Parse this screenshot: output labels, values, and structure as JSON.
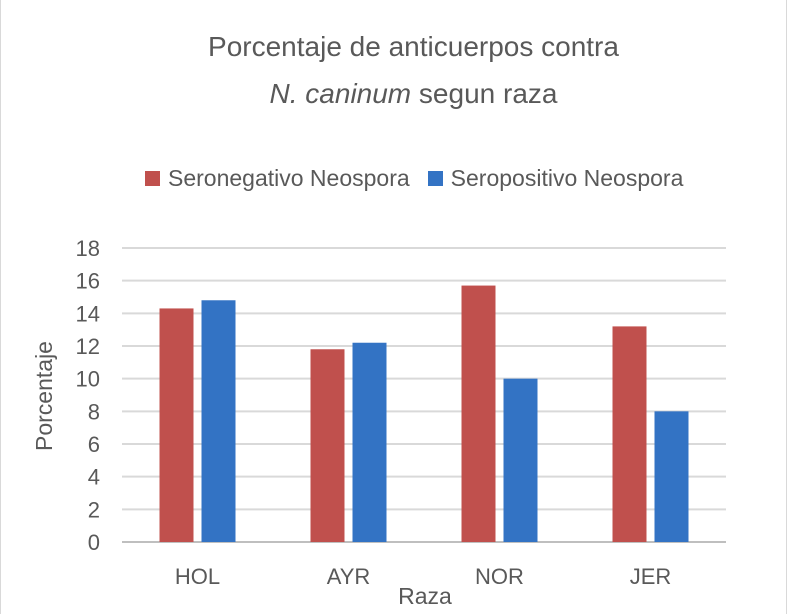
{
  "chart_data": {
    "type": "bar",
    "title_line1": "Porcentaje de anticuerpos contra",
    "title_line2_italic": "N. caninum",
    "title_line2_rest": " segun raza",
    "xlabel": "Raza",
    "ylabel": "Porcentaje",
    "categories": [
      "HOL",
      "AYR",
      "NOR",
      "JER"
    ],
    "series": [
      {
        "name": "Seronegativo Neospora",
        "color": "#c0504d",
        "values": [
          14.3,
          11.8,
          15.7,
          13.2
        ]
      },
      {
        "name": "Seropositivo Neospora",
        "color": "#3373c4",
        "values": [
          14.8,
          12.2,
          10.0,
          8.0
        ]
      }
    ],
    "ylim": [
      0,
      18
    ],
    "yticks": [
      "0",
      "2",
      "4",
      "6",
      "8",
      "10",
      "12",
      "14",
      "16",
      "18"
    ],
    "grid": true,
    "legend_position": "top"
  }
}
